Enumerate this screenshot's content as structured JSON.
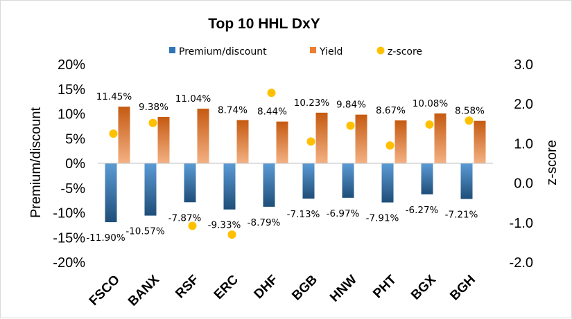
{
  "chart_data": {
    "type": "bar",
    "title": "Top 10 HHL DxY",
    "categories": [
      "FSCO",
      "BANX",
      "RSF",
      "ERC",
      "DHF",
      "BGB",
      "HNW",
      "PHT",
      "BGX",
      "BGH"
    ],
    "series": [
      {
        "name": "Premium/discount",
        "type": "bar",
        "axis": "left",
        "values": [
          -11.9,
          -10.57,
          -7.87,
          -9.33,
          -8.79,
          -7.13,
          -6.97,
          -7.91,
          -6.27,
          -7.21
        ],
        "labels": [
          "-11.90%",
          "-10.57%",
          "-7.87%",
          "-9.33%",
          "-8.79%",
          "-7.13%",
          "-6.97%",
          "-7.91%",
          "-6.27%",
          "-7.21%"
        ],
        "color": "#2e75b6"
      },
      {
        "name": "Yield",
        "type": "bar",
        "axis": "left",
        "values": [
          11.45,
          9.38,
          11.04,
          8.74,
          8.44,
          10.23,
          9.84,
          8.67,
          10.08,
          8.58
        ],
        "labels": [
          "11.45%",
          "9.38%",
          "11.04%",
          "8.74%",
          "8.44%",
          "10.23%",
          "9.84%",
          "8.67%",
          "10.08%",
          "8.58%"
        ],
        "color": "#ed7d31"
      },
      {
        "name": "z-score",
        "type": "scatter",
        "axis": "right",
        "values": [
          1.25,
          1.52,
          -1.08,
          -1.3,
          2.28,
          1.05,
          1.45,
          0.95,
          1.48,
          1.58
        ],
        "color": "#ffc000"
      }
    ],
    "ylabel": "Premium/discount",
    "ylim": [
      -20,
      20
    ],
    "yticks": [
      "20%",
      "15%",
      "10%",
      "5%",
      "0%",
      "-5%",
      "-10%",
      "-15%",
      "-20%"
    ],
    "y2label": "z-score",
    "y2lim": [
      -2.0,
      3.0
    ],
    "y2ticks": [
      "3.0",
      "2.0",
      "1.0",
      "0.0",
      "-1.0",
      "-2.0"
    ],
    "grid": false,
    "legend": "top"
  }
}
